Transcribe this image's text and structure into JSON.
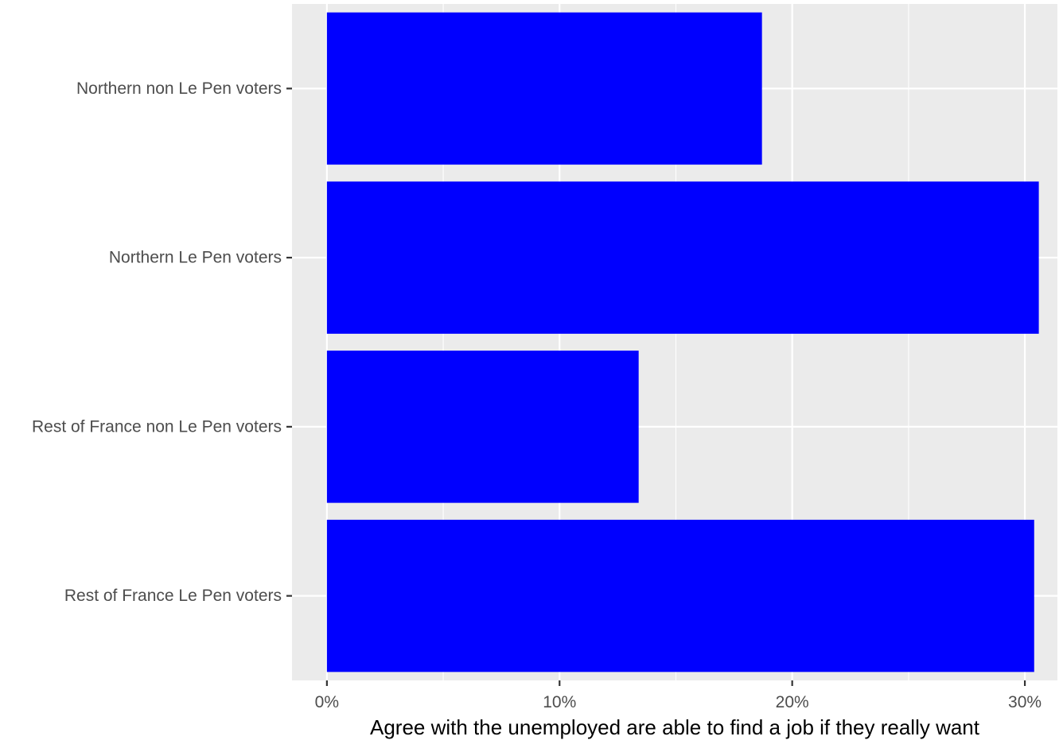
{
  "chart_data": {
    "type": "bar",
    "orientation": "horizontal",
    "categories": [
      "Northern non Le Pen voters",
      "Northern Le Pen voters",
      "Rest of France non Le Pen voters",
      "Rest of France Le Pen voters"
    ],
    "values": [
      0.187,
      0.306,
      0.134,
      0.304
    ],
    "xlabel": "Agree with the unemployed are able to find a job if they really want",
    "ylabel": "",
    "xlim": [
      -0.015,
      0.314
    ],
    "x_ticks": [
      0,
      0.1,
      0.2,
      0.3
    ],
    "x_tick_labels": [
      "0%",
      "10%",
      "20%",
      "30%"
    ],
    "grid": true,
    "colors": {
      "bar": "#0000ff",
      "panel": "#ebebeb",
      "grid": "#ffffff"
    }
  }
}
